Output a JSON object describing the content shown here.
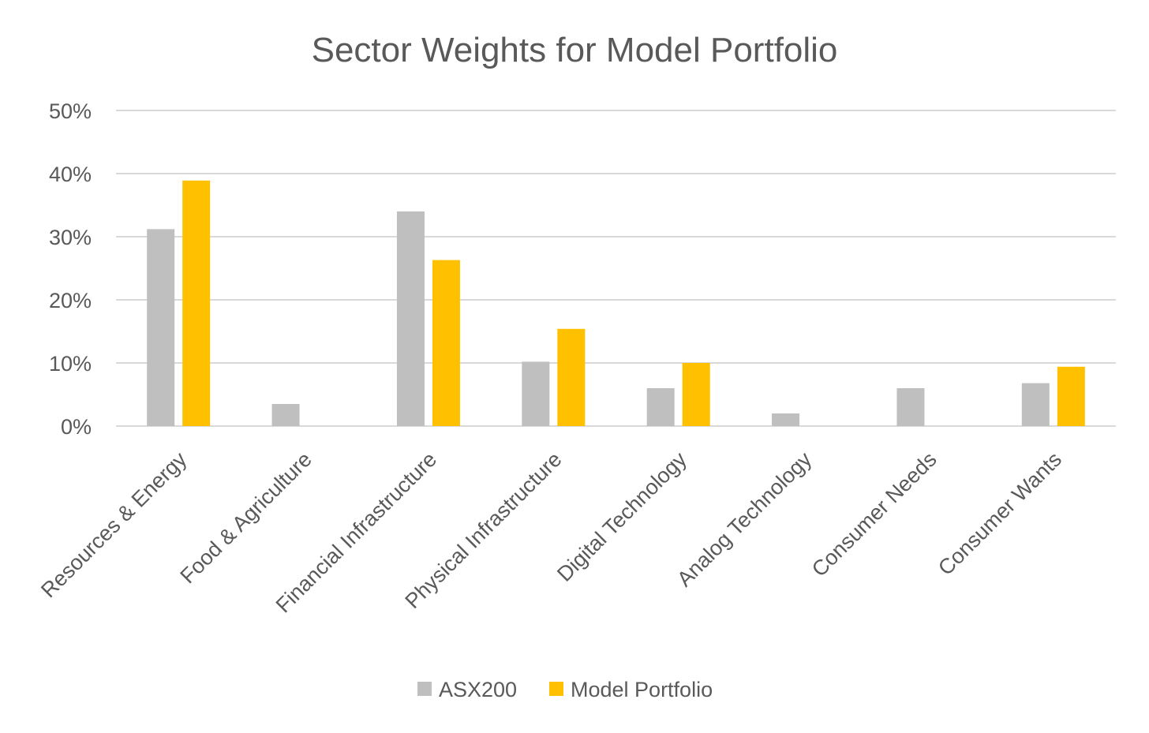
{
  "chart_data": {
    "type": "bar",
    "title": "Sector Weights for Model Portfolio",
    "xlabel": "",
    "ylabel": "",
    "categories": [
      "Resources & Energy",
      "Food & Agriculture",
      "Financial Infrastructure",
      "Physical Infrastructure",
      "Digital Technology",
      "Analog Technology",
      "Consumer Needs",
      "Consumer Wants"
    ],
    "series": [
      {
        "name": "ASX200",
        "color": "#bfbfbf",
        "values": [
          31.2,
          3.5,
          34.0,
          10.2,
          6.0,
          2.0,
          6.0,
          6.8
        ]
      },
      {
        "name": "Model Portfolio",
        "color": "#ffc000",
        "values": [
          38.9,
          0,
          26.3,
          15.4,
          10.0,
          0,
          0,
          9.4
        ]
      }
    ],
    "ylim": [
      0,
      50
    ],
    "yticks": [
      0,
      10,
      20,
      30,
      40,
      50
    ],
    "ytick_labels": [
      "0%",
      "10%",
      "20%",
      "30%",
      "40%",
      "50%"
    ],
    "grid": true,
    "legend_position": "bottom-center",
    "colors": {
      "gridline": "#d9d9d9",
      "text": "#595959"
    }
  }
}
